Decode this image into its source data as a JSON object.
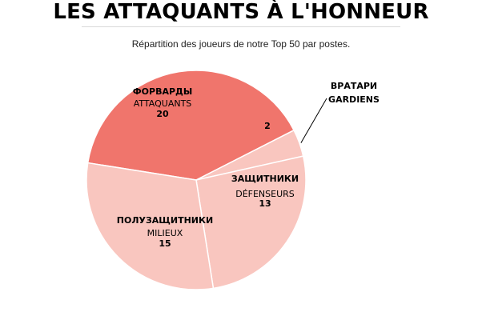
{
  "chart_data": {
    "type": "pie",
    "title": "LES ATTAQUANTS À L'HONNEUR",
    "subtitle": "Répartition des joueurs de notre Top 50 par postes.",
    "slices": [
      {
        "label_ru": "ФОРВАРДЫ",
        "label_fr": "ATTAQUANTS",
        "value": 20,
        "color": "#f0756c"
      },
      {
        "label_ru": "ВРАТАРИ",
        "label_fr": "GARDIENS",
        "value": 2,
        "color": "#f9c6bf"
      },
      {
        "label_ru": "ЗАЩИТНИКИ",
        "label_fr": "DÉFENSEURS",
        "value": 13,
        "color": "#f9c6bf"
      },
      {
        "label_ru": "ПОЛУЗАЩИТНИКИ",
        "label_fr": "MILIEUX",
        "value": 15,
        "color": "#f9c6bf"
      }
    ]
  }
}
